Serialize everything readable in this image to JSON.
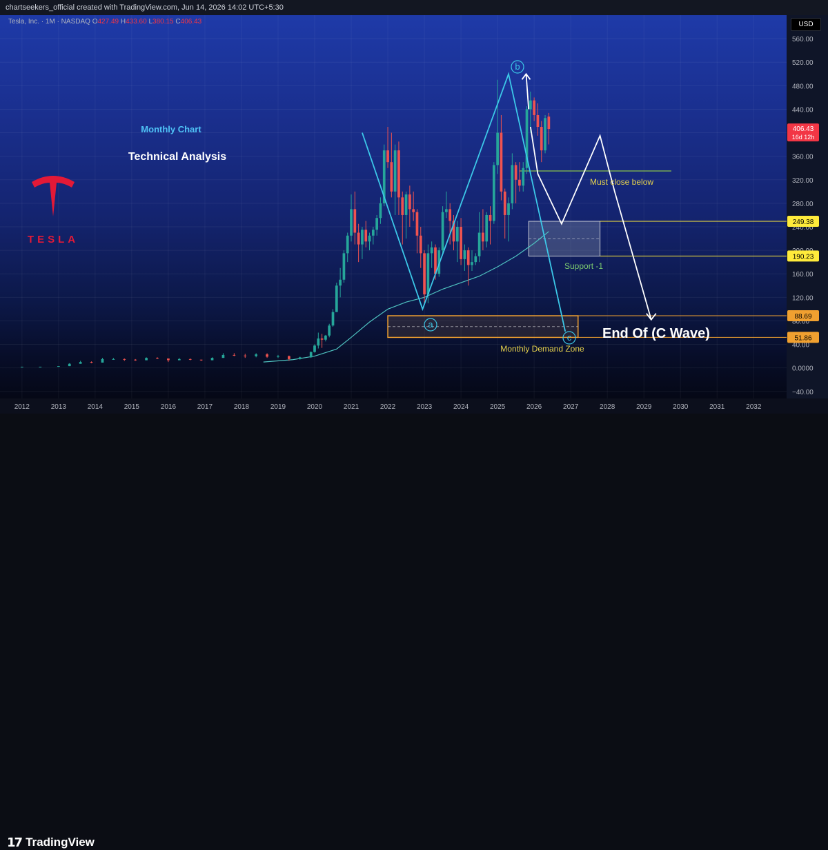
{
  "header": {
    "attribution": "chartseekers_official created with TradingView.com, Jun 14, 2026 14:02 UTC+5:30"
  },
  "symbol": {
    "name": "Tesla, Inc. · 1M · NASDAQ",
    "o_label": "O",
    "o": "427.49",
    "h_label": "H",
    "h": "433.60",
    "l_label": "L",
    "l": "380.15",
    "c_label": "C",
    "c": "406.43"
  },
  "currency": "USD",
  "brand": {
    "wordmark": "TESLA",
    "logo_icon": "tesla-t-logo-icon"
  },
  "footer": {
    "brand": "TradingView",
    "logo_icon": "tradingview-logo-icon"
  },
  "annotations": {
    "monthly_chart": "Monthly Chart",
    "technical_analysis": "Technical Analysis",
    "must_close_below": "Must close below",
    "support": "Support -1",
    "demand_zone": "Monthly Demand Zone",
    "end_of_c": "End Of (C Wave)",
    "wave_a": "a",
    "wave_b": "b",
    "wave_c": "c"
  },
  "price_tags": {
    "current": "406.43",
    "countdown": "16d 12h",
    "level_1": "249.38",
    "level_2": "190.23",
    "level_3": "88.69",
    "level_4": "51.86"
  },
  "colors": {
    "up": "#26a69a",
    "down": "#ef5350",
    "wave": "#3cc8e8",
    "projection": "#ffffff",
    "zone": "#f0a030",
    "level_line": "#ffffff",
    "must_close_line": "#8bc34a",
    "support_text": "#7bc96f",
    "annot_text": "#e8d44d"
  },
  "chart_data": {
    "type": "candlestick",
    "timeframe": "1M",
    "y_ticks": [
      560,
      520,
      480,
      440,
      400,
      360,
      320,
      280,
      240,
      200,
      160,
      120,
      80,
      40,
      0,
      -40
    ],
    "y_tick_labels": [
      "560.00",
      "520.00",
      "480.00",
      "440.00",
      "400.00",
      "360.00",
      "320.00",
      "280.00",
      "240.00",
      "200.00",
      "160.00",
      "120.00",
      "80.00",
      "40.00",
      "0.0000",
      "−40.00"
    ],
    "ylim": [
      -52,
      600
    ],
    "x_ticks": [
      "2012",
      "2013",
      "2014",
      "2015",
      "2016",
      "2017",
      "2018",
      "2019",
      "2020",
      "2021",
      "2022",
      "2023",
      "2024",
      "2025",
      "2026",
      "2027",
      "2028",
      "2029",
      "2030",
      "2031",
      "2032"
    ],
    "xlim": [
      2011.4,
      2032.9
    ],
    "candles": [
      [
        2012.0,
        2,
        2,
        2,
        2
      ],
      [
        2012.5,
        2,
        2,
        2,
        2
      ],
      [
        2013.0,
        2,
        3,
        2,
        3
      ],
      [
        2013.3,
        3,
        8,
        3,
        7
      ],
      [
        2013.6,
        7,
        12,
        7,
        10
      ],
      [
        2013.9,
        10,
        11,
        8,
        9
      ],
      [
        2014.2,
        9,
        17,
        9,
        15
      ],
      [
        2014.5,
        15,
        17,
        14,
        15
      ],
      [
        2014.8,
        15,
        16,
        12,
        14
      ],
      [
        2015.1,
        14,
        15,
        12,
        13
      ],
      [
        2015.4,
        13,
        18,
        13,
        17
      ],
      [
        2015.7,
        17,
        18,
        15,
        16
      ],
      [
        2016.0,
        16,
        16,
        10,
        13
      ],
      [
        2016.3,
        13,
        17,
        13,
        15
      ],
      [
        2016.6,
        15,
        16,
        13,
        14
      ],
      [
        2016.9,
        14,
        14,
        12,
        13
      ],
      [
        2017.2,
        13,
        18,
        13,
        17
      ],
      [
        2017.5,
        17,
        25,
        17,
        22
      ],
      [
        2017.8,
        22,
        25,
        20,
        21
      ],
      [
        2018.1,
        21,
        24,
        17,
        20
      ],
      [
        2018.4,
        20,
        25,
        18,
        23
      ],
      [
        2018.7,
        23,
        25,
        17,
        19
      ],
      [
        2019.0,
        19,
        22,
        17,
        20
      ],
      [
        2019.3,
        20,
        21,
        12,
        15
      ],
      [
        2019.6,
        15,
        19,
        14,
        18
      ],
      [
        2019.9,
        18,
        28,
        17,
        27
      ],
      [
        2020.0,
        27,
        40,
        26,
        38
      ],
      [
        2020.1,
        38,
        60,
        33,
        50
      ],
      [
        2020.2,
        50,
        58,
        34,
        48
      ],
      [
        2020.3,
        48,
        56,
        45,
        55
      ],
      [
        2020.4,
        55,
        75,
        52,
        72
      ],
      [
        2020.5,
        72,
        100,
        70,
        95
      ],
      [
        2020.6,
        95,
        145,
        95,
        140
      ],
      [
        2020.7,
        140,
        170,
        120,
        150
      ],
      [
        2020.8,
        150,
        200,
        145,
        195
      ],
      [
        2020.9,
        195,
        230,
        180,
        225
      ],
      [
        2021.0,
        225,
        295,
        215,
        270
      ],
      [
        2021.1,
        270,
        300,
        210,
        230
      ],
      [
        2021.2,
        230,
        245,
        180,
        210
      ],
      [
        2021.3,
        210,
        240,
        185,
        235
      ],
      [
        2021.4,
        235,
        250,
        205,
        215
      ],
      [
        2021.5,
        215,
        230,
        200,
        225
      ],
      [
        2021.6,
        225,
        240,
        210,
        235
      ],
      [
        2021.7,
        235,
        260,
        225,
        255
      ],
      [
        2021.8,
        255,
        290,
        245,
        280
      ],
      [
        2021.9,
        280,
        380,
        275,
        370
      ],
      [
        2022.0,
        370,
        410,
        340,
        350
      ],
      [
        2022.1,
        350,
        400,
        290,
        300
      ],
      [
        2022.2,
        300,
        380,
        260,
        370
      ],
      [
        2022.3,
        370,
        385,
        260,
        290
      ],
      [
        2022.4,
        290,
        300,
        210,
        260
      ],
      [
        2022.5,
        260,
        300,
        220,
        295
      ],
      [
        2022.6,
        295,
        310,
        240,
        270
      ],
      [
        2022.7,
        270,
        300,
        250,
        265
      ],
      [
        2022.8,
        265,
        270,
        195,
        225
      ],
      [
        2022.9,
        225,
        240,
        170,
        195
      ],
      [
        2023.0,
        195,
        200,
        108,
        125
      ],
      [
        2023.1,
        125,
        210,
        110,
        195
      ],
      [
        2023.2,
        195,
        215,
        170,
        205
      ],
      [
        2023.3,
        205,
        210,
        150,
        160
      ],
      [
        2023.4,
        160,
        205,
        155,
        200
      ],
      [
        2023.5,
        200,
        275,
        195,
        265
      ],
      [
        2023.6,
        265,
        300,
        255,
        270
      ],
      [
        2023.7,
        270,
        280,
        210,
        250
      ],
      [
        2023.8,
        250,
        260,
        200,
        215
      ],
      [
        2023.9,
        215,
        250,
        180,
        240
      ],
      [
        2024.0,
        240,
        255,
        175,
        185
      ],
      [
        2024.1,
        185,
        210,
        165,
        200
      ],
      [
        2024.2,
        200,
        205,
        140,
        175
      ],
      [
        2024.3,
        175,
        200,
        165,
        180
      ],
      [
        2024.4,
        180,
        195,
        175,
        190
      ],
      [
        2024.5,
        190,
        265,
        180,
        230
      ],
      [
        2024.6,
        230,
        270,
        200,
        215
      ],
      [
        2024.7,
        215,
        265,
        205,
        260
      ],
      [
        2024.8,
        260,
        275,
        210,
        250
      ],
      [
        2024.9,
        250,
        350,
        245,
        345
      ],
      [
        2025.0,
        345,
        490,
        330,
        400
      ],
      [
        2025.1,
        400,
        430,
        285,
        300
      ],
      [
        2025.2,
        300,
        305,
        220,
        260
      ],
      [
        2025.3,
        260,
        290,
        215,
        280
      ],
      [
        2025.4,
        280,
        365,
        270,
        345
      ],
      [
        2025.5,
        345,
        350,
        280,
        320
      ],
      [
        2025.6,
        320,
        350,
        300,
        310
      ],
      [
        2025.7,
        310,
        350,
        300,
        340
      ],
      [
        2025.8,
        340,
        445,
        330,
        440
      ],
      [
        2025.9,
        440,
        470,
        400,
        455
      ],
      [
        2026.0,
        455,
        460,
        420,
        430
      ],
      [
        2026.1,
        430,
        450,
        395,
        410
      ],
      [
        2026.2,
        410,
        420,
        350,
        370
      ],
      [
        2026.3,
        370,
        430,
        365,
        425
      ],
      [
        2026.4,
        427.49,
        433.6,
        380.15,
        406.43
      ]
    ],
    "ma_points": [
      [
        2018.6,
        10
      ],
      [
        2019.4,
        14
      ],
      [
        2020.0,
        20
      ],
      [
        2020.6,
        32
      ],
      [
        2021.0,
        52
      ],
      [
        2021.5,
        78
      ],
      [
        2022.0,
        100
      ],
      [
        2022.5,
        112
      ],
      [
        2023.0,
        120
      ],
      [
        2023.5,
        134
      ],
      [
        2024.0,
        145
      ],
      [
        2024.5,
        156
      ],
      [
        2025.0,
        172
      ],
      [
        2025.5,
        190
      ],
      [
        2026.0,
        212
      ],
      [
        2026.4,
        232
      ]
    ],
    "wave_lines": [
      [
        [
          2021.3,
          400
        ],
        [
          2022.95,
          100
        ],
        [
          2025.3,
          500
        ],
        [
          2026.85,
          62
        ]
      ]
    ],
    "projection_path": [
      [
        2025.9,
        410
      ],
      [
        2026.1,
        330
      ],
      [
        2026.75,
        245
      ],
      [
        2027.8,
        395
      ],
      [
        2028.2,
        300
      ],
      [
        2029.2,
        82
      ]
    ],
    "projection_up_arrow": [
      [
        2025.85,
        440
      ],
      [
        2025.78,
        500
      ]
    ],
    "levels": [
      {
        "price": 249.38,
        "from": 2027.8,
        "to": 2032.9
      },
      {
        "price": 190.23,
        "from": 2027.8,
        "to": 2032.9
      },
      {
        "price": 88.69,
        "from": 2027.2,
        "to": 2032.9
      },
      {
        "price": 51.86,
        "from": 2027.2,
        "to": 2032.9
      }
    ],
    "must_close_line": {
      "price": 335,
      "from": 2025.6,
      "to": 2029.75
    },
    "support_box": {
      "x0": 2025.85,
      "x1": 2027.8,
      "y0": 190.23,
      "y1": 249.38
    },
    "demand_zone": {
      "x0": 2022.0,
      "x1": 2027.2,
      "y0": 51.86,
      "y1": 88.69
    }
  }
}
